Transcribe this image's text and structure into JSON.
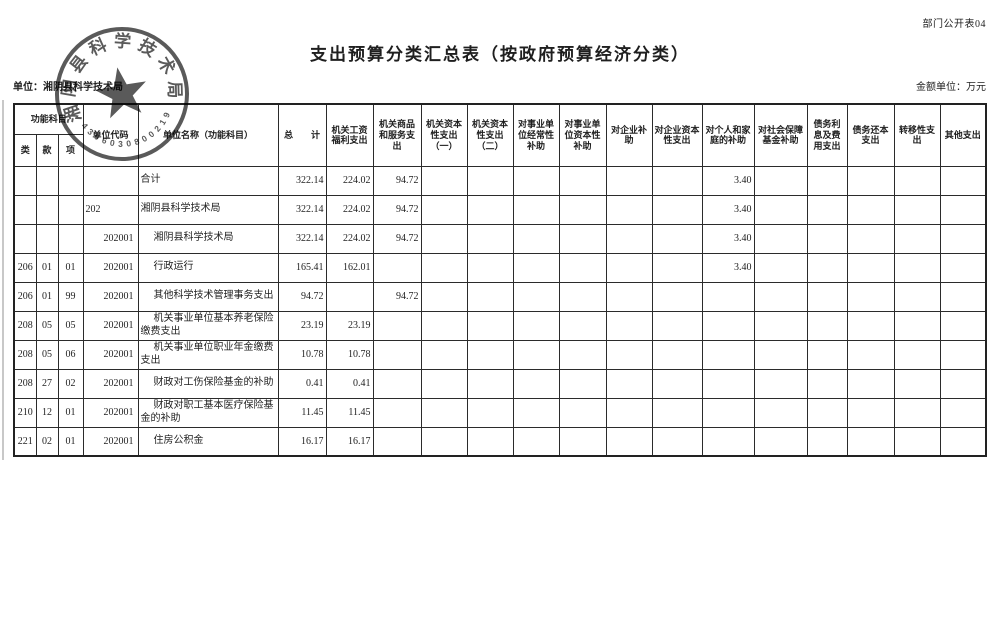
{
  "page": {
    "doc_label": "部门公开表04",
    "title": "支出预算分类汇总表（按政府预算经济分类）",
    "unit_line": "单位：湘阴县科学技术局",
    "amount_unit": "金额单位：万元"
  },
  "seal": {
    "org_text": "湘阴县科学技术局",
    "serial_number": "4306030800219",
    "ink_color": "#3d3d3d"
  },
  "table": {
    "header": {
      "function_group": "功能科目",
      "col_class": "类",
      "col_section": "款",
      "col_item": "项",
      "unit_code": "单位代码",
      "unit_name": "单位名称（功能科目）",
      "total": "总　　计",
      "econ_cols": [
        "机关工资福利支出",
        "机关商品和服务支出",
        "机关资本性支出（一）",
        "机关资本性支出（二）",
        "对事业单位经常性补助",
        "对事业单位资本性补助",
        "对企业补助",
        "对企业资本性支出",
        "对个人和家庭的补助",
        "对社会保障基金补助",
        "债务利息及费用支出",
        "债务还本支出",
        "转移性支出",
        "其他支出"
      ]
    },
    "rows": [
      [
        "",
        "",
        "",
        "",
        "合计",
        "322.14",
        "224.02",
        "94.72",
        "",
        "",
        "",
        "",
        "",
        "",
        "3.40",
        "",
        "",
        "",
        "",
        ""
      ],
      [
        "",
        "",
        "",
        "202",
        "湘阴县科学技术局",
        "322.14",
        "224.02",
        "94.72",
        "",
        "",
        "",
        "",
        "",
        "",
        "3.40",
        "",
        "",
        "",
        "",
        ""
      ],
      [
        "",
        "",
        "",
        "202001",
        "湘阴县科学技术局",
        "322.14",
        "224.02",
        "94.72",
        "",
        "",
        "",
        "",
        "",
        "",
        "3.40",
        "",
        "",
        "",
        "",
        ""
      ],
      [
        "206",
        "01",
        "01",
        "202001",
        "行政运行",
        "165.41",
        "162.01",
        "",
        "",
        "",
        "",
        "",
        "",
        "",
        "3.40",
        "",
        "",
        "",
        "",
        ""
      ],
      [
        "206",
        "01",
        "99",
        "202001",
        "其他科学技术管理事务支出",
        "94.72",
        "",
        "94.72",
        "",
        "",
        "",
        "",
        "",
        "",
        "",
        "",
        "",
        "",
        "",
        ""
      ],
      [
        "208",
        "05",
        "05",
        "202001",
        "机关事业单位基本养老保险缴费支出",
        "23.19",
        "23.19",
        "",
        "",
        "",
        "",
        "",
        "",
        "",
        "",
        "",
        "",
        "",
        "",
        ""
      ],
      [
        "208",
        "05",
        "06",
        "202001",
        "机关事业单位职业年金缴费支出",
        "10.78",
        "10.78",
        "",
        "",
        "",
        "",
        "",
        "",
        "",
        "",
        "",
        "",
        "",
        "",
        ""
      ],
      [
        "208",
        "27",
        "02",
        "202001",
        "财政对工伤保险基金的补助",
        "0.41",
        "0.41",
        "",
        "",
        "",
        "",
        "",
        "",
        "",
        "",
        "",
        "",
        "",
        "",
        ""
      ],
      [
        "210",
        "12",
        "01",
        "202001",
        "财政对职工基本医疗保险基金的补助",
        "11.45",
        "11.45",
        "",
        "",
        "",
        "",
        "",
        "",
        "",
        "",
        "",
        "",
        "",
        "",
        ""
      ],
      [
        "221",
        "02",
        "01",
        "202001",
        "住房公积金",
        "16.17",
        "16.17",
        "",
        "",
        "",
        "",
        "",
        "",
        "",
        "",
        "",
        "",
        "",
        "",
        ""
      ]
    ]
  }
}
